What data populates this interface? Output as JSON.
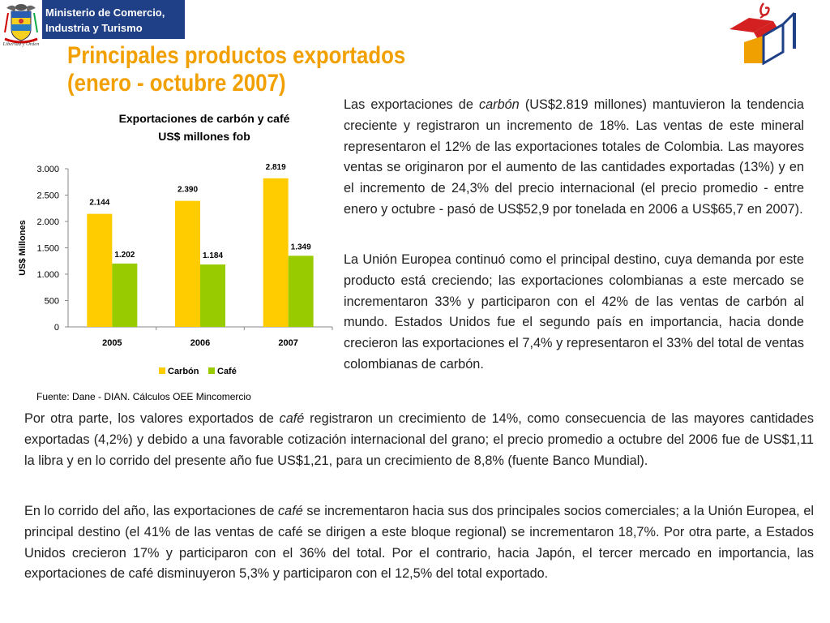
{
  "header": {
    "ministry_line1": "Ministerio de Comercio,",
    "ministry_line2": "Industria y Turismo",
    "coat_motto": "Libertad y Orden",
    "brand_color": "#1f3f86",
    "title_color": "#f2a000"
  },
  "title": {
    "line1": "Principales productos exportados",
    "line2": "(enero - octubre 2007)"
  },
  "chart_data": {
    "type": "bar",
    "title": "Exportaciones de carbón y café",
    "subtitle": "US$ millones fob",
    "categories": [
      "2005",
      "2006",
      "2007"
    ],
    "series": [
      {
        "name": "Carbón",
        "color": "#ffcc00",
        "values": [
          2144,
          2390,
          2819
        ],
        "labels": [
          "2.144",
          "2.390",
          "2.819"
        ]
      },
      {
        "name": "Café",
        "color": "#99cc00",
        "values": [
          1202,
          1184,
          1349
        ],
        "labels": [
          "1.202",
          "1.184",
          "1.349"
        ]
      }
    ],
    "ylabel": "US$ Millones",
    "ylim": [
      0,
      3000
    ],
    "yticks": [
      0,
      500,
      1000,
      1500,
      2000,
      2500,
      3000
    ],
    "ytick_labels": [
      "0",
      "500",
      "1.000",
      "1.500",
      "2.000",
      "2.500",
      "3.000"
    ],
    "legend": "bottom",
    "grid": false
  },
  "source": "Fuente: Dane - DIAN. Cálculos OEE Mincomercio",
  "paragraphs": {
    "p1": {
      "a": "Las exportaciones de ",
      "em": "carbón",
      "b": " (US$2.819 millones) mantuvieron la tendencia creciente y registraron un incremento de 18%. Las ventas de este mineral representaron el 12% de las exportaciones totales de Colombia. Las mayores ventas se originaron por el aumento de las cantidades exportadas (13%) y en el incremento de 24,3% del precio internacional (el precio promedio - entre enero y octubre - pasó de US$52,9 por tonelada en 2006 a US$65,7 en 2007)."
    },
    "p2": "La Unión Europea continuó como el principal destino, cuya demanda por este producto está creciendo; las exportaciones colombianas a este mercado se incrementaron 33% y participaron con el 42% de las ventas de carbón al mundo. Estados Unidos fue el segundo país en importancia, hacia donde crecieron las exportaciones el 7,4% y representaron el 33% del total de ventas colombianas de carbón.",
    "p3": {
      "a": "Por otra parte, los valores exportados de ",
      "em": "café",
      "b": " registraron un crecimiento de 14%, como consecuencia de las mayores cantidades exportadas (4,2%) y debido a una favorable cotización internacional del grano; el precio promedio a octubre del 2006 fue de US$1,11 la libra y en lo corrido del presente año fue US$1,21, para un crecimiento de 8,8% (fuente Banco Mundial)."
    },
    "p4": {
      "a": "En lo corrido del año, las exportaciones de ",
      "em": "café",
      "b": " se incrementaron hacia sus dos principales socios comerciales; a la Unión Europea, el principal destino (el 41% de las ventas de café se dirigen a este bloque regional) se incrementaron 18,7%. Por otra parte, a Estados Unidos crecieron 17% y participaron con el 36% del total. Por el contrario, hacia Japón, el tercer mercado en importancia, las exportaciones de café disminuyeron 5,3% y participaron con el 12,5% del total exportado."
    }
  }
}
